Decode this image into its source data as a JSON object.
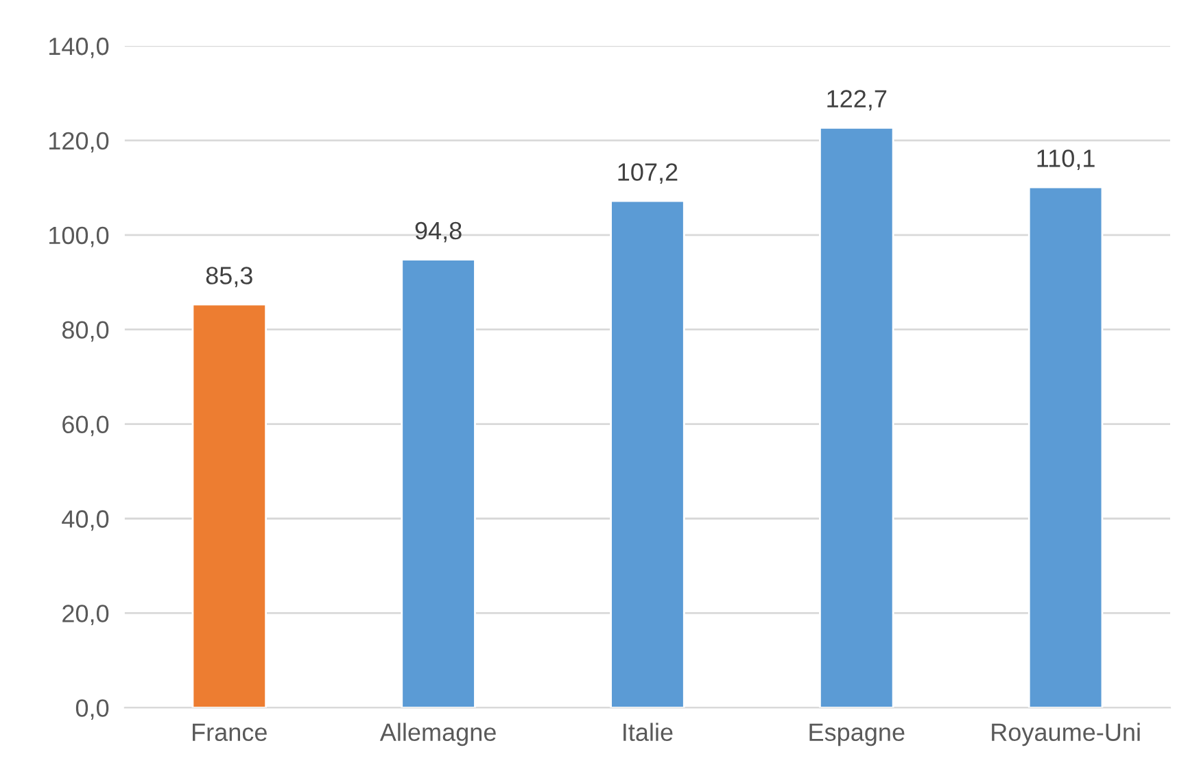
{
  "chart_data": {
    "type": "bar",
    "categories": [
      "France",
      "Allemagne",
      "Italie",
      "Espagne",
      "Royaume-Uni"
    ],
    "values": [
      85.3,
      94.8,
      107.2,
      122.7,
      110.1
    ],
    "colors": [
      "#ed7d31",
      "#5b9bd5",
      "#5b9bd5",
      "#5b9bd5",
      "#5b9bd5"
    ],
    "value_labels": [
      "85,3",
      "94,8",
      "107,2",
      "122,7",
      "110,1"
    ],
    "ylim": [
      0,
      140
    ],
    "yticks": [
      {
        "value": 0,
        "label": "0,0"
      },
      {
        "value": 20,
        "label": "20,0"
      },
      {
        "value": 40,
        "label": "40,0"
      },
      {
        "value": 60,
        "label": "60,0"
      },
      {
        "value": 80,
        "label": "80,0"
      },
      {
        "value": 100,
        "label": "100,0"
      },
      {
        "value": 120,
        "label": "120,0"
      },
      {
        "value": 140,
        "label": "140,0"
      }
    ],
    "grid": "y"
  }
}
